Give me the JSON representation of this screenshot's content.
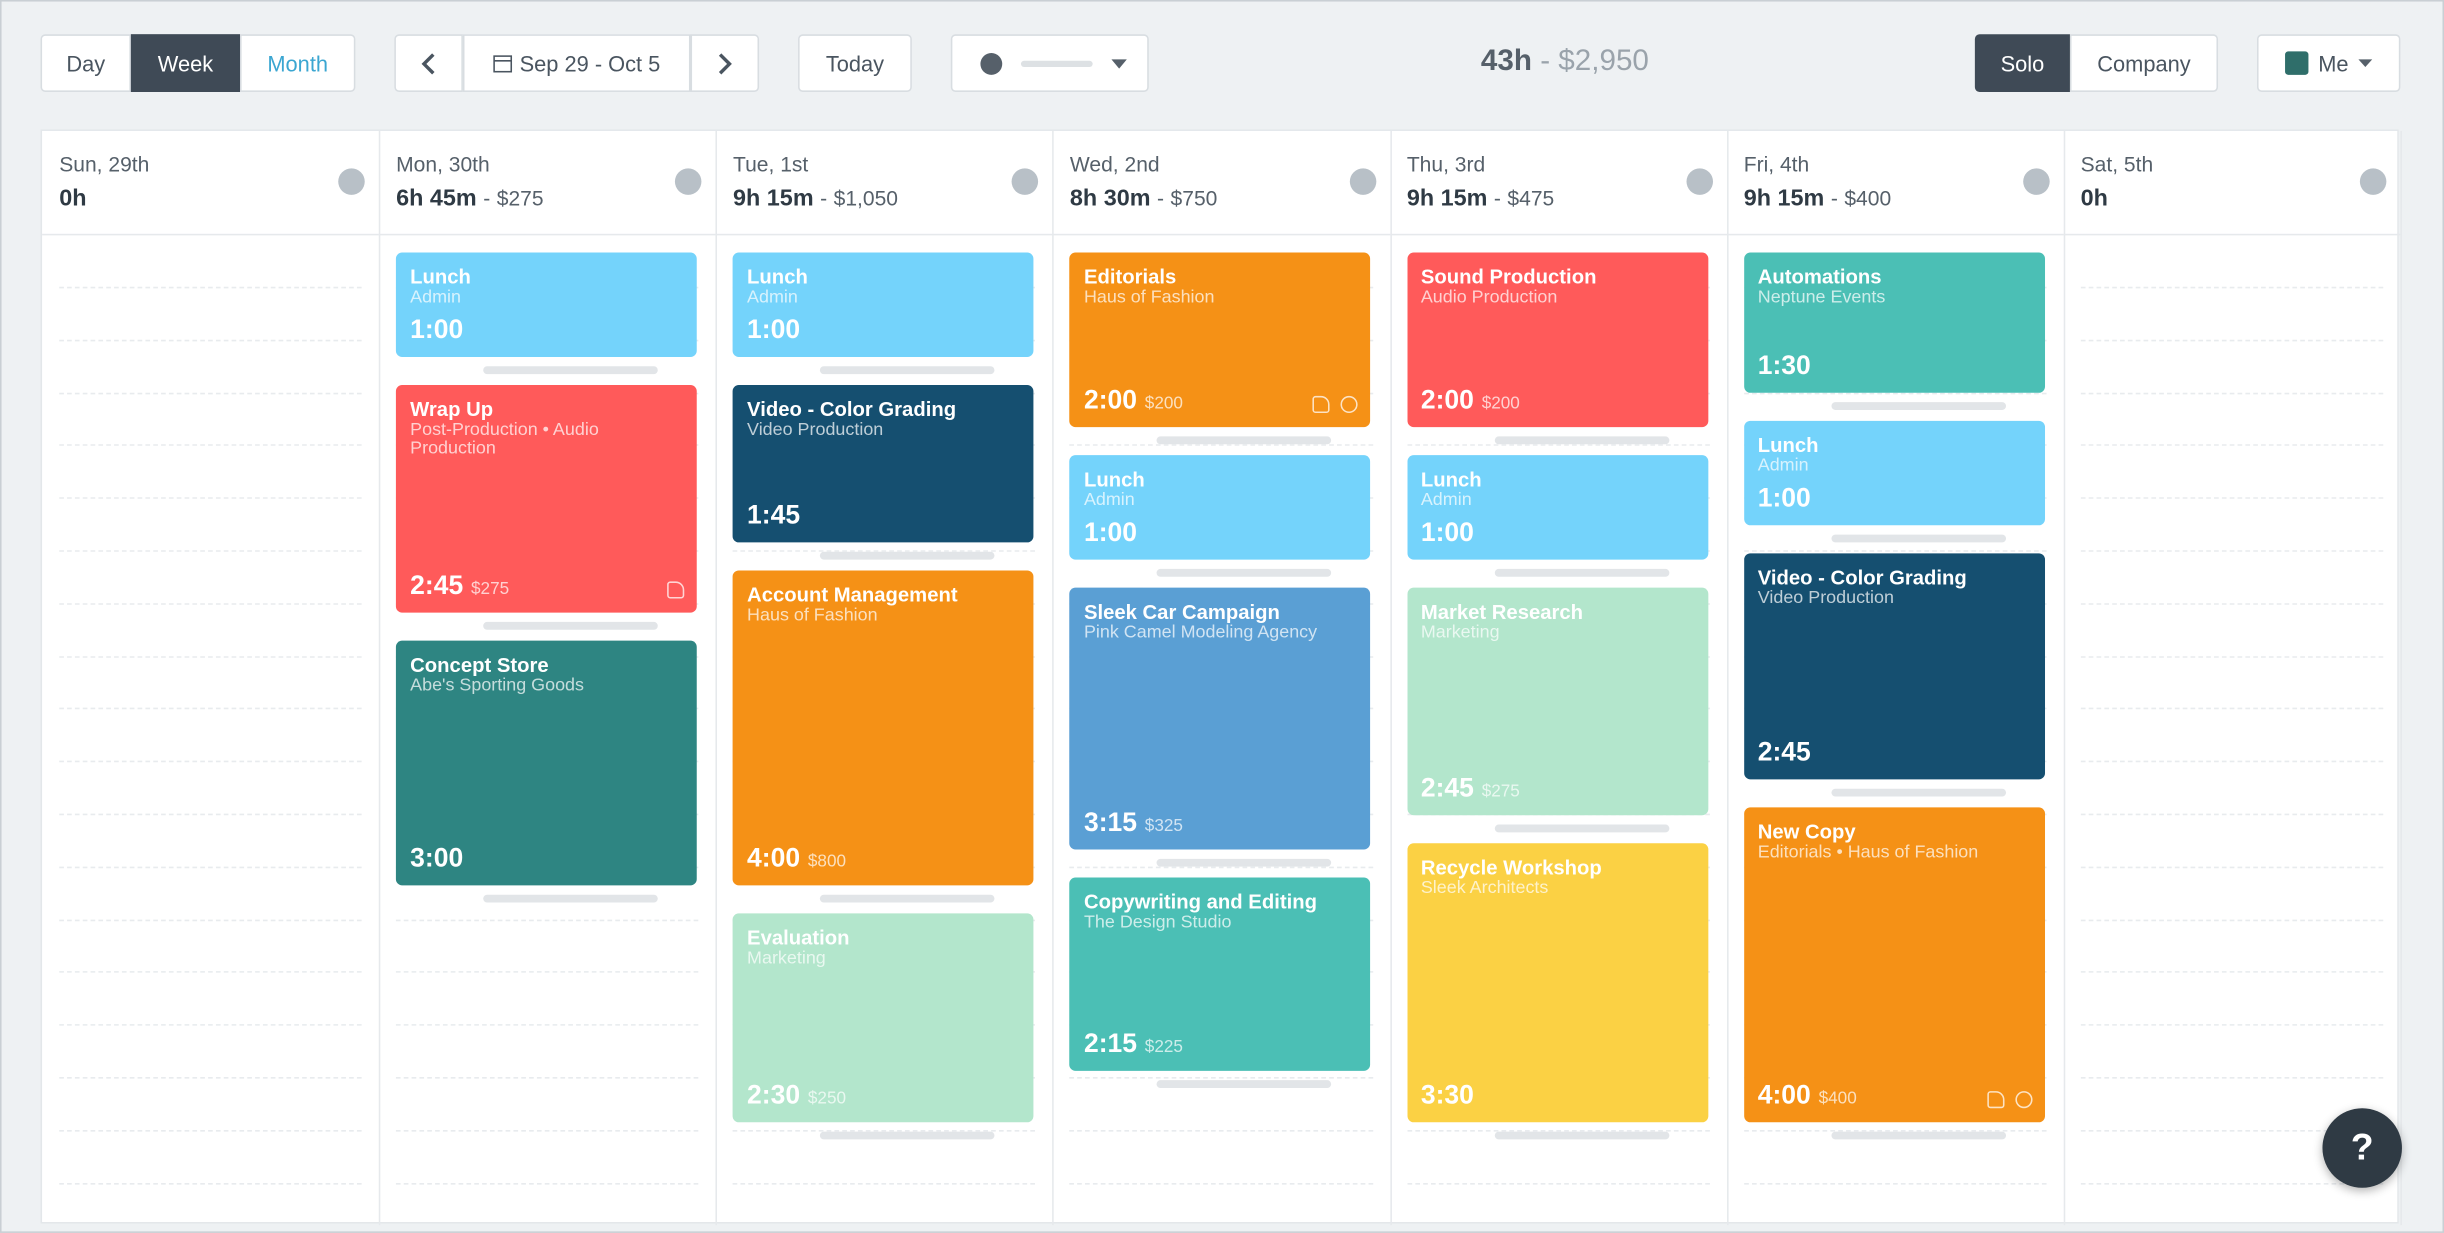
{
  "toolbar": {
    "views": [
      "Day",
      "Week",
      "Month"
    ],
    "active_view": 1,
    "date_range": "Sep 29 - Oct 5",
    "today": "Today",
    "modes": [
      "Solo",
      "Company"
    ],
    "active_mode": 0,
    "user": "Me"
  },
  "summary": {
    "hours": "43h",
    "separator": "-",
    "amount": "$2,950"
  },
  "help": "?",
  "days": [
    {
      "name": "Sun, 29th",
      "total": "0h",
      "entries": []
    },
    {
      "name": "Mon, 30th",
      "total": "6h 45m",
      "amount": "$275",
      "entries": [
        {
          "title": "Lunch",
          "subtitle": "Admin",
          "duration": "1:00",
          "color": "#74d3fb"
        },
        {
          "title": "Wrap Up",
          "subtitle": "Post-Production • Audio Production",
          "duration": "2:45",
          "amount": "$275",
          "color": "#ff5a5a",
          "tag": true
        },
        {
          "title": "Concept Store",
          "subtitle": "Abe's Sporting Goods",
          "duration": "3:00",
          "color": "#2e8582"
        }
      ]
    },
    {
      "name": "Tue, 1st",
      "total": "9h 15m",
      "amount": "$1,050",
      "entries": [
        {
          "title": "Lunch",
          "subtitle": "Admin",
          "duration": "1:00",
          "color": "#74d3fb"
        },
        {
          "title": "Video - Color Grading",
          "subtitle": "Video Production",
          "duration": "1:45",
          "color": "#154f70"
        },
        {
          "title": "Account Management",
          "subtitle": "Haus of Fashion",
          "duration": "4:00",
          "amount": "$800",
          "color": "#f59116"
        },
        {
          "title": "Evaluation",
          "subtitle": "Marketing",
          "duration": "2:30",
          "amount": "$250",
          "color": "#b3e6cc"
        }
      ]
    },
    {
      "name": "Wed, 2nd",
      "total": "8h 30m",
      "amount": "$750",
      "entries": [
        {
          "title": "Editorials",
          "subtitle": "Haus of Fashion",
          "duration": "2:00",
          "amount": "$200",
          "color": "#f59116",
          "tag": true,
          "check": true
        },
        {
          "title": "Lunch",
          "subtitle": "Admin",
          "duration": "1:00",
          "color": "#74d3fb"
        },
        {
          "title": "Sleek Car Campaign",
          "subtitle": "Pink Camel Modeling Agency",
          "duration": "3:15",
          "amount": "$325",
          "color": "#5a9fd4"
        },
        {
          "title": "Copywriting and Editing",
          "subtitle": "The Design Studio",
          "duration": "2:15",
          "amount": "$225",
          "color": "#4bbfb5"
        }
      ]
    },
    {
      "name": "Thu, 3rd",
      "total": "9h 15m",
      "amount": "$475",
      "entries": [
        {
          "title": "Sound Production",
          "subtitle": "Audio Production",
          "duration": "2:00",
          "amount": "$200",
          "color": "#ff5a5a"
        },
        {
          "title": "Lunch",
          "subtitle": "Admin",
          "duration": "1:00",
          "color": "#74d3fb"
        },
        {
          "title": "Market Research",
          "subtitle": "Marketing",
          "duration": "2:45",
          "amount": "$275",
          "color": "#b3e6cc"
        },
        {
          "title": "Recycle Workshop",
          "subtitle": "Sleek Architects",
          "duration": "3:30",
          "color": "#fbd144"
        }
      ]
    },
    {
      "name": "Fri, 4th",
      "total": "9h 15m",
      "amount": "$400",
      "entries": [
        {
          "title": "Automations",
          "subtitle": "Neptune Events",
          "duration": "1:30",
          "color": "#4bbfb5"
        },
        {
          "title": "Lunch",
          "subtitle": "Admin",
          "duration": "1:00",
          "color": "#74d3fb"
        },
        {
          "title": "Video - Color Grading",
          "subtitle": "Video Production",
          "duration": "2:45",
          "color": "#154f70"
        },
        {
          "title": "New Copy",
          "subtitle": "Editorials • Haus of Fashion",
          "duration": "4:00",
          "amount": "$400",
          "color": "#f59116",
          "tag": true,
          "check": true
        }
      ]
    },
    {
      "name": "Sat, 5th",
      "total": "0h",
      "entries": []
    }
  ]
}
